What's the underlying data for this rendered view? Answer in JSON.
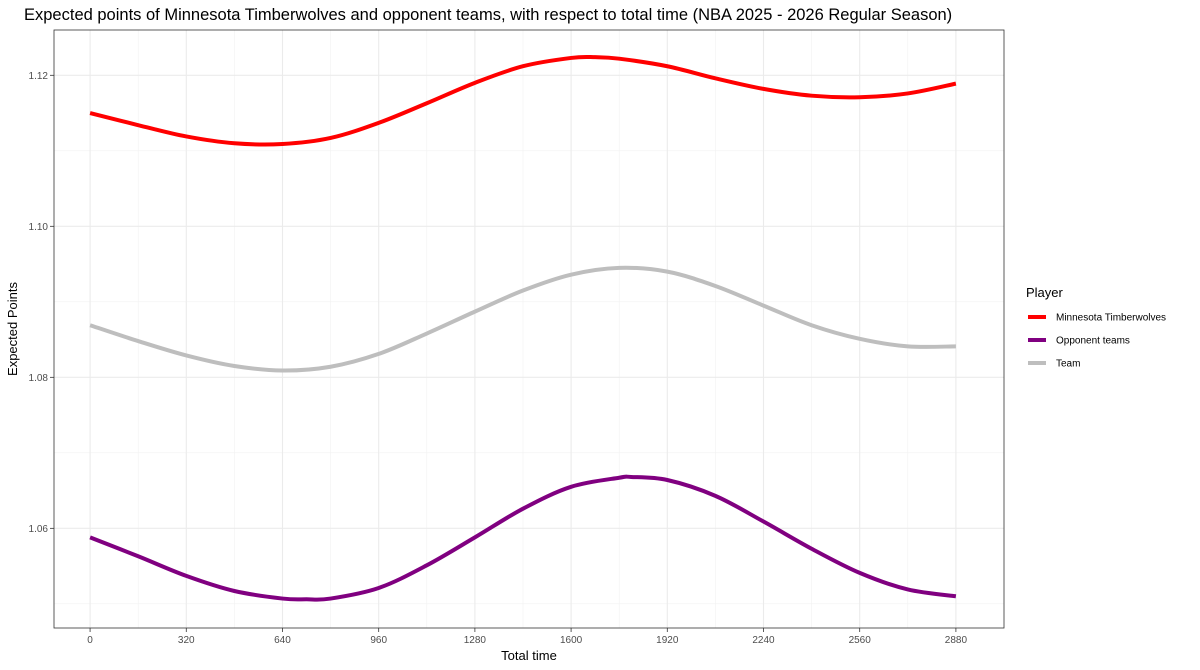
{
  "chart_data": {
    "type": "line",
    "title": "Expected points of Minnesota Timberwolves and opponent teams, with respect to total time (NBA 2025 - 2026 Regular Season)",
    "xlabel": "Total time",
    "ylabel": "Expected Points",
    "xlim": [
      -120,
      3040
    ],
    "ylim": [
      1.0468,
      1.126
    ],
    "x_ticks": [
      0,
      320,
      640,
      960,
      1280,
      1600,
      1920,
      2240,
      2560,
      2880
    ],
    "y_ticks": [
      1.06,
      1.08,
      1.1,
      1.12
    ],
    "y_tick_labels": [
      "1.06",
      "1.08",
      "1.10",
      "1.12"
    ],
    "grid": true,
    "legend": {
      "title": "Player",
      "position": "right"
    },
    "series": [
      {
        "name": "Minnesota Timberwolves",
        "color": "#ff0000",
        "x": [
          0,
          160,
          320,
          480,
          640,
          800,
          960,
          1120,
          1280,
          1440,
          1600,
          1680,
          1760,
          1920,
          2080,
          2240,
          2400,
          2560,
          2720,
          2880
        ],
        "values": [
          1.115,
          1.1134,
          1.1119,
          1.111,
          1.1109,
          1.1117,
          1.1137,
          1.1163,
          1.119,
          1.1212,
          1.1223,
          1.1224,
          1.1222,
          1.1212,
          1.1196,
          1.1182,
          1.1173,
          1.1171,
          1.1176,
          1.1189
        ]
      },
      {
        "name": "Opponent teams",
        "color": "#800080",
        "x": [
          0,
          160,
          320,
          480,
          640,
          720,
          800,
          960,
          1120,
          1280,
          1440,
          1600,
          1760,
          1800,
          1920,
          2080,
          2240,
          2400,
          2560,
          2720,
          2880
        ],
        "values": [
          1.0588,
          1.0563,
          1.0537,
          1.0517,
          1.0507,
          1.0506,
          1.0507,
          1.0521,
          1.0551,
          1.0588,
          1.0626,
          1.0655,
          1.0667,
          1.0668,
          1.0664,
          1.0643,
          1.0609,
          1.0573,
          1.0541,
          1.0519,
          1.051
        ]
      },
      {
        "name": "Team",
        "color": "#bebebe",
        "x": [
          0,
          160,
          320,
          480,
          640,
          800,
          960,
          1120,
          1280,
          1440,
          1600,
          1760,
          1920,
          2080,
          2240,
          2400,
          2560,
          2720,
          2880
        ],
        "values": [
          1.0869,
          1.0848,
          1.0829,
          1.0815,
          1.0809,
          1.0814,
          1.0831,
          1.0858,
          1.0887,
          1.0915,
          1.0936,
          1.0945,
          1.094,
          1.0921,
          1.0895,
          1.0869,
          1.0851,
          1.0841,
          1.0841
        ]
      }
    ]
  }
}
